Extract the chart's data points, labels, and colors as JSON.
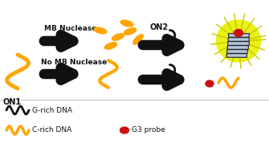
{
  "bg_color": "#ffffff",
  "orange_color": "#FFA500",
  "black_color": "#111111",
  "red_color": "#cc1111",
  "yellow_glow": "#e8f000",
  "struct_color": "#b8c8e0",
  "struct_edge": "#222222",
  "label_ON1": "ON1",
  "label_ON2": "ON2",
  "label_MB": "MB Nuclease",
  "label_noMB": "No MB Nuclease",
  "label_Grich": "G-rich DNA",
  "label_Crich": "C-rich DNA",
  "label_G3": "G3 probe",
  "fig_width": 3.35,
  "fig_height": 1.89,
  "dpi": 100
}
